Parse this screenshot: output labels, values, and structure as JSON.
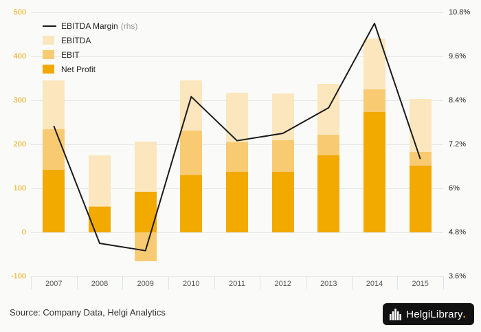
{
  "footer": {
    "source": "Source: Company Data, Helgi Analytics"
  },
  "logo": {
    "part1": "Helgi",
    "part2": "Library",
    "dot": "."
  },
  "legend": {
    "margin_label": "EBITDA Margin",
    "margin_suffix": "(rhs)",
    "ebitda_label": "EBITDA",
    "ebit_label": "EBIT",
    "net_profit_label": "Net Profit"
  },
  "colors": {
    "ebitda": "#FBE6BD",
    "ebit": "#F8CB72",
    "net_profit": "#F2A900",
    "line": "#1a1a1a",
    "left_axis_labels": "#F0A500",
    "right_axis_labels": "#222222",
    "x_axis_labels": "#555555",
    "grid": "#e7e7e7",
    "background": "#fafaf9"
  },
  "chart_data": {
    "type": "bar+line",
    "title": "",
    "categories": [
      "2007",
      "2008",
      "2009",
      "2010",
      "2011",
      "2012",
      "2013",
      "2014",
      "2015"
    ],
    "bar_series": [
      {
        "name": "EBITDA",
        "color_key": "ebitda",
        "values": [
          345,
          175,
          207,
          345,
          318,
          315,
          337,
          440,
          303
        ]
      },
      {
        "name": "EBIT",
        "color_key": "ebit",
        "values": [
          235,
          60,
          -65,
          232,
          205,
          210,
          222,
          325,
          183
        ]
      },
      {
        "name": "Net Profit",
        "color_key": "net_profit",
        "values": [
          143,
          58,
          92,
          130,
          137,
          137,
          175,
          273,
          152
        ]
      }
    ],
    "line_series": {
      "name": "EBITDA Margin (rhs)",
      "axis": "right",
      "values": [
        7.7,
        4.5,
        4.3,
        8.5,
        7.3,
        7.5,
        8.2,
        10.5,
        6.8
      ]
    },
    "left_axis": {
      "min": -100,
      "max": 500,
      "ticks": [
        -100,
        0,
        100,
        200,
        300,
        400,
        500
      ]
    },
    "right_axis": {
      "min": 3.6,
      "max": 10.8,
      "ticks": [
        3.6,
        4.8,
        6,
        7.2,
        8.4,
        9.6,
        10.8
      ],
      "tick_labels": [
        "3.6%",
        "4.8%",
        "6%",
        "7.2%",
        "8.4%",
        "9.6%",
        "10.8%"
      ]
    },
    "grid": true,
    "legend_position": "top-left"
  }
}
